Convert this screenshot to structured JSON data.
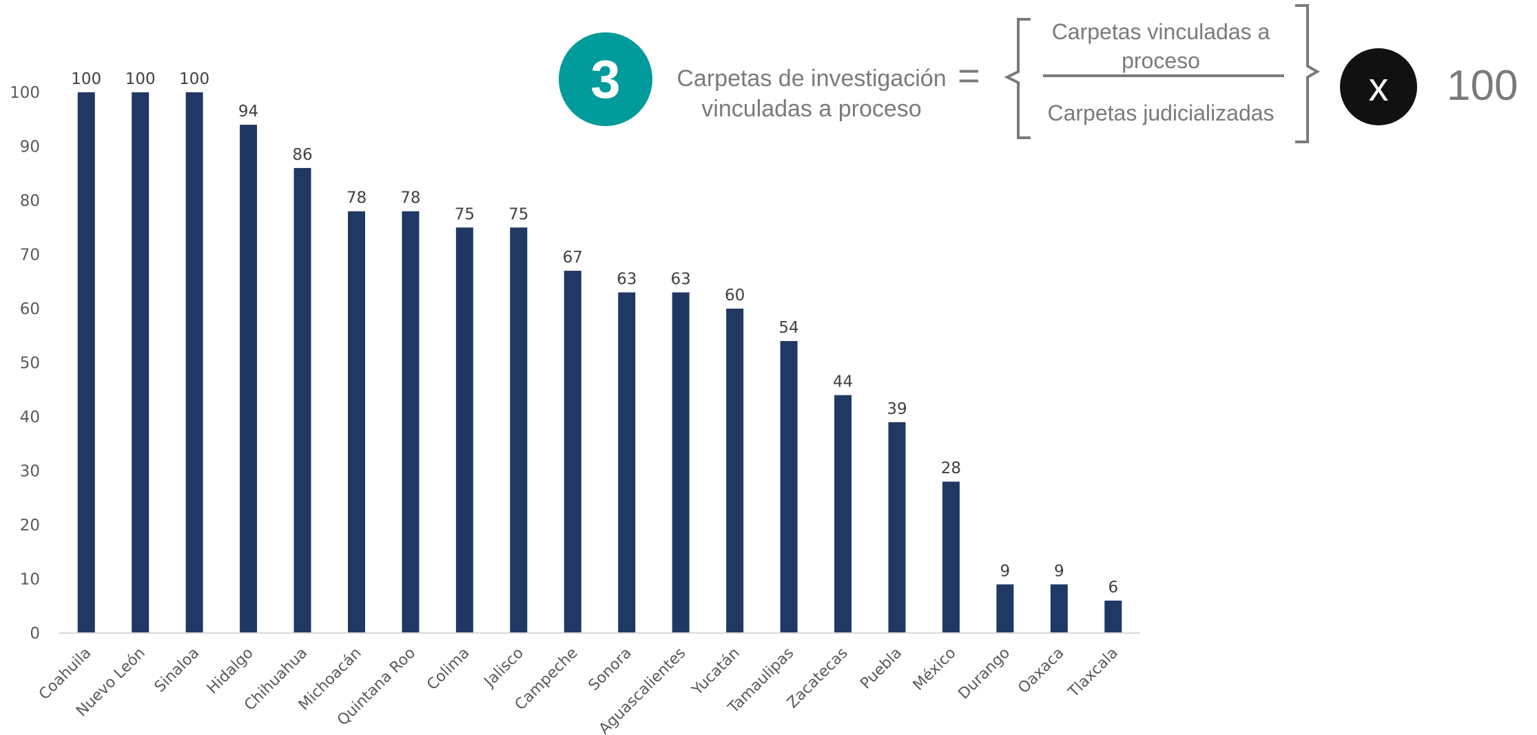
{
  "formula": {
    "badge_number": "3",
    "metric_line1": "Carpetas de investigación",
    "metric_line2": "vinculadas a proceso",
    "equals": "=",
    "numerator_line1": "Carpetas vinculadas a",
    "numerator_line2": "proceso",
    "denominator": "Carpetas judicializadas",
    "times": "x",
    "multiplier": "100",
    "badge_color": "#009b9a"
  },
  "chart_data": {
    "type": "bar",
    "title": "",
    "xlabel": "",
    "ylabel": "",
    "ylim": [
      0,
      100
    ],
    "yticks": [
      0,
      10,
      20,
      30,
      40,
      50,
      60,
      70,
      80,
      90,
      100
    ],
    "grid": false,
    "bar_color": "#203864",
    "categories": [
      "Coahuila",
      "Nuevo León",
      "Sinaloa",
      "Hidalgo",
      "Chihuahua",
      "Michoacán",
      "Quintana Roo",
      "Colima",
      "Jalisco",
      "Campeche",
      "Sonora",
      "Aguascalientes",
      "Yucatán",
      "Tamaulipas",
      "Zacatecas",
      "Puebla",
      "México",
      "Durango",
      "Oaxaca",
      "Tlaxcala"
    ],
    "values": [
      100,
      100,
      100,
      94,
      86,
      78,
      78,
      75,
      75,
      67,
      63,
      63,
      60,
      54,
      44,
      39,
      28,
      9,
      9,
      6
    ]
  }
}
